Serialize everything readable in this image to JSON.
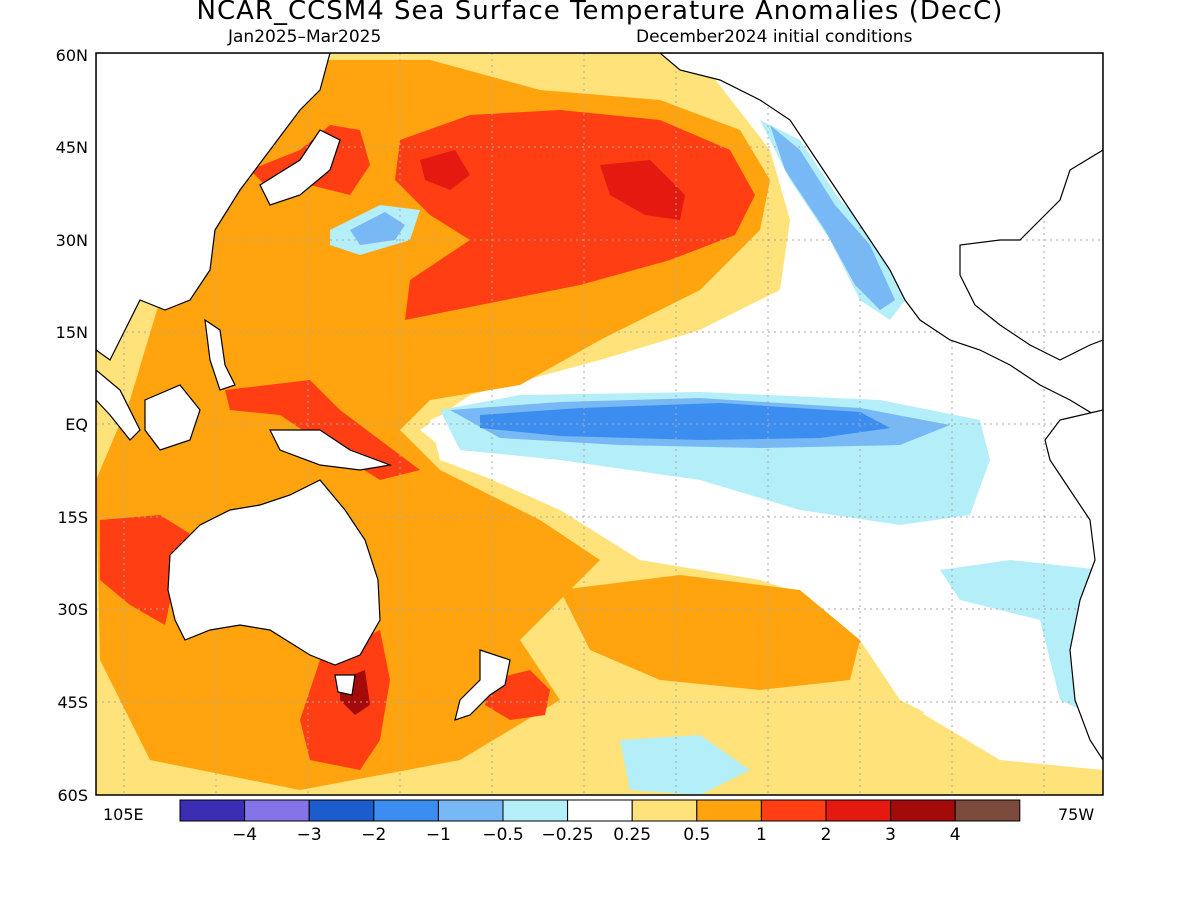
{
  "title": "NCAR_CCSM4 Sea Surface Temperature Anomalies (DecC)",
  "subtitle_left": "Jan2025–Mar2025",
  "subtitle_right": "December2024 initial conditions",
  "lat_labels": [
    "60N",
    "45N",
    "30N",
    "15N",
    "EQ",
    "15S",
    "30S",
    "45S",
    "60S"
  ],
  "lon_left_label": "105E",
  "lon_right_label": "75W",
  "colorbar": {
    "colors": [
      "#3b2db4",
      "#8474e8",
      "#1c5ccc",
      "#3b8ef0",
      "#78b8f4",
      "#b4eef8",
      "#ffffff",
      "#ffe27a",
      "#ffa40e",
      "#ff3e14",
      "#e41a10",
      "#a50a0a",
      "#7c4a3c"
    ],
    "labels": [
      "−4",
      "−3",
      "−2",
      "−1",
      "−0.5",
      "−0.25",
      "0.25",
      "0.5",
      "1",
      "2",
      "3",
      "4"
    ]
  },
  "map_colors": {
    "land_line": "#000000",
    "grid": "#aaaaaa"
  }
}
